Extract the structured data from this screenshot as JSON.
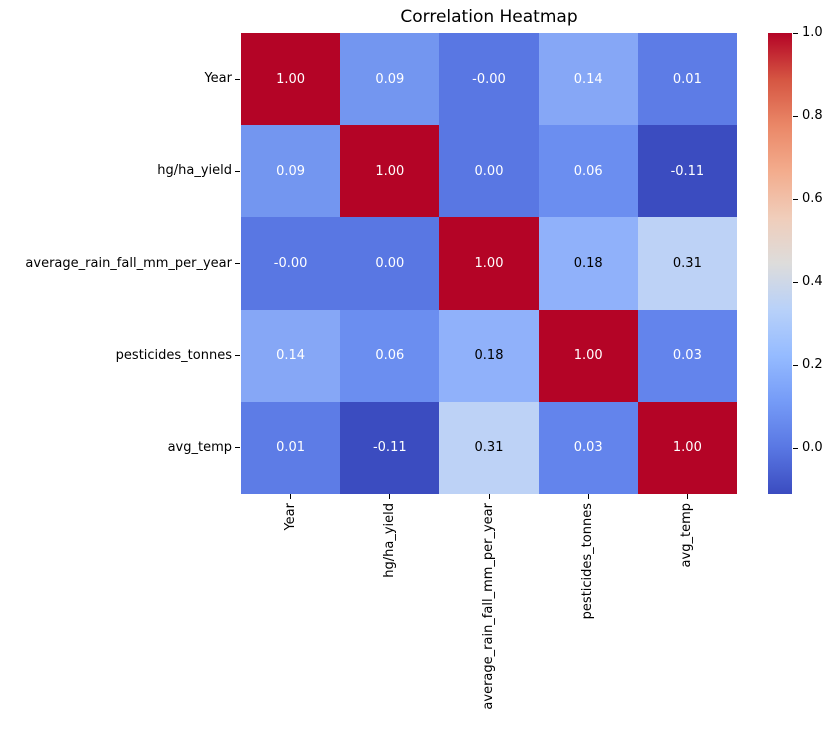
{
  "figure": {
    "background": "#ffffff"
  },
  "chart_data": {
    "type": "heatmap",
    "title": "Correlation Heatmap",
    "x_labels": [
      "Year",
      "hg/ha_yield",
      "average_rain_fall_mm_per_year",
      "pesticides_tonnes",
      "avg_temp"
    ],
    "y_labels": [
      "Year",
      "hg/ha_yield",
      "average_rain_fall_mm_per_year",
      "pesticides_tonnes",
      "avg_temp"
    ],
    "matrix": [
      [
        1.0,
        0.09,
        -0.0,
        0.14,
        0.01
      ],
      [
        0.09,
        1.0,
        0.0,
        0.06,
        -0.11
      ],
      [
        -0.0,
        0.0,
        1.0,
        0.18,
        0.31
      ],
      [
        0.14,
        0.06,
        0.18,
        1.0,
        0.03
      ],
      [
        0.01,
        -0.11,
        0.31,
        0.03,
        1.0
      ]
    ],
    "cell_labels": [
      [
        "1.00",
        "0.09",
        "-0.00",
        "0.14",
        "0.01"
      ],
      [
        "0.09",
        "1.00",
        "0.00",
        "0.06",
        "-0.11"
      ],
      [
        "-0.00",
        "0.00",
        "1.00",
        "0.18",
        "0.31"
      ],
      [
        "0.14",
        "0.06",
        "0.18",
        "1.00",
        "0.03"
      ],
      [
        "0.01",
        "-0.11",
        "0.31",
        "0.03",
        "1.00"
      ]
    ],
    "cell_colors": [
      [
        "#b40426",
        "#7396f0",
        "#5977e3",
        "#86a7f6",
        "#5d7ce6"
      ],
      [
        "#7396f0",
        "#b40426",
        "#5977e3",
        "#6b8ef0",
        "#3b4cc0"
      ],
      [
        "#5977e3",
        "#5977e3",
        "#b40426",
        "#90b1fa",
        "#bdd2f6"
      ],
      [
        "#86a7f6",
        "#6b8ef0",
        "#90b1fa",
        "#b40426",
        "#6384ec"
      ],
      [
        "#5d7ce6",
        "#3b4cc0",
        "#bdd2f6",
        "#6384ec",
        "#b40426"
      ]
    ],
    "cell_text_colors": [
      [
        "#ffffff",
        "#ffffff",
        "#ffffff",
        "#ffffff",
        "#ffffff"
      ],
      [
        "#ffffff",
        "#ffffff",
        "#ffffff",
        "#ffffff",
        "#ffffff"
      ],
      [
        "#ffffff",
        "#ffffff",
        "#ffffff",
        "#000000",
        "#000000"
      ],
      [
        "#ffffff",
        "#ffffff",
        "#000000",
        "#ffffff",
        "#ffffff"
      ],
      [
        "#ffffff",
        "#ffffff",
        "#000000",
        "#ffffff",
        "#ffffff"
      ]
    ],
    "colormap": "coolwarm",
    "vmin": -0.11,
    "vmax": 1.0,
    "grid": false,
    "legend_position": "right-colorbar",
    "colorbar": {
      "ticks": [
        {
          "label": "1.0",
          "frac_from_top": 0.0
        },
        {
          "label": "0.8",
          "frac_from_top": 0.1802
        },
        {
          "label": "0.6",
          "frac_from_top": 0.3604
        },
        {
          "label": "0.4",
          "frac_from_top": 0.5405
        },
        {
          "label": "0.2",
          "frac_from_top": 0.7207
        },
        {
          "label": "0.0",
          "frac_from_top": 0.9009
        }
      ],
      "gradient_bottom_to_top": [
        {
          "pos": 0.0,
          "color": "#3b4cc0"
        },
        {
          "pos": 0.1,
          "color": "#5977e3"
        },
        {
          "pos": 0.2,
          "color": "#759bf7"
        },
        {
          "pos": 0.3,
          "color": "#95bbff"
        },
        {
          "pos": 0.4,
          "color": "#b8d1f9"
        },
        {
          "pos": 0.5,
          "color": "#dddcdb"
        },
        {
          "pos": 0.6,
          "color": "#f0cdba"
        },
        {
          "pos": 0.7,
          "color": "#f3ac8d"
        },
        {
          "pos": 0.8,
          "color": "#ea8767"
        },
        {
          "pos": 0.9,
          "color": "#d55542"
        },
        {
          "pos": 1.0,
          "color": "#b40426"
        }
      ]
    }
  }
}
